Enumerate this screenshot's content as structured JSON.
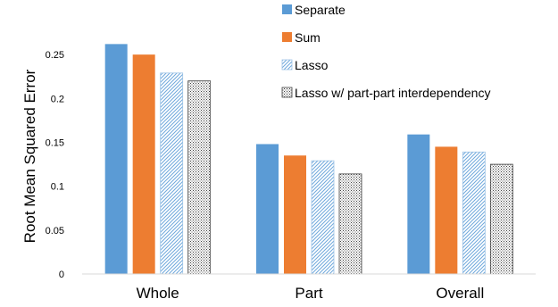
{
  "chart_data": {
    "type": "bar",
    "title": "",
    "xlabel": "",
    "ylabel": "Root Mean Squared Error",
    "categories": [
      "Whole",
      "Part",
      "Overall"
    ],
    "ylim": [
      0,
      0.3
    ],
    "yticks": [
      0,
      0.05,
      0.1,
      0.15,
      0.2,
      0.25
    ],
    "ytick_labels": [
      "0",
      "0.05",
      "0.1",
      "0.15",
      "0.2",
      "0.25"
    ],
    "grid": false,
    "legend_position": "top-right",
    "series": [
      {
        "name": "Separate",
        "values": [
          0.262,
          0.148,
          0.159
        ],
        "color": "#5b9bd5",
        "pattern": "solid"
      },
      {
        "name": "Sum",
        "values": [
          0.25,
          0.135,
          0.145
        ],
        "color": "#ed7d31",
        "pattern": "solid"
      },
      {
        "name": "Lasso",
        "values": [
          0.229,
          0.129,
          0.139
        ],
        "color": "#9dc3e6",
        "pattern": "diagonal"
      },
      {
        "name": "Lasso w/ part-part interdependency",
        "values": [
          0.22,
          0.114,
          0.125
        ],
        "color": "#404040",
        "pattern": "dots"
      }
    ]
  }
}
